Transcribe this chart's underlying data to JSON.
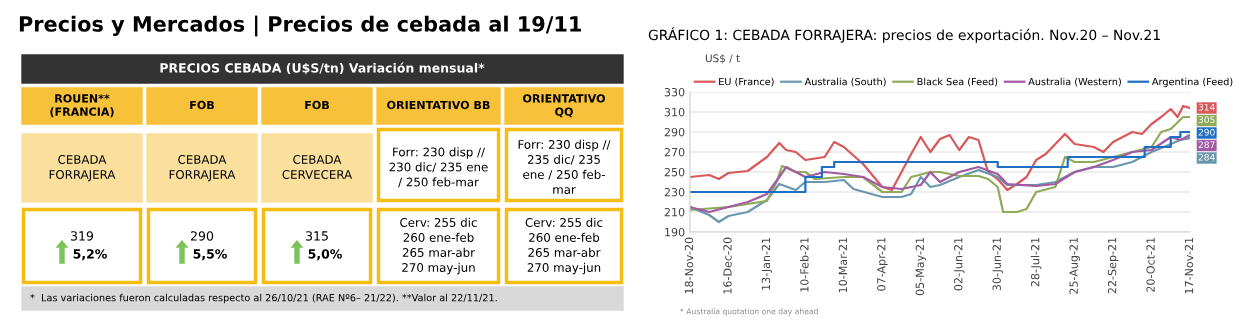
{
  "chart_data": [
    {
      "type": "other",
      "title": "Precios y Mercados | Precios de cebada al 19/11",
      "subtitle": "PRECIOS CEBADA (U$S/tn) Variación mensual*",
      "categories": [
        "ROUEN**\n(FRANCIA)",
        "FOB",
        "FOB",
        "ORIENTATIVO BB",
        "ORIENTATIVO\nQQ"
      ],
      "cell_labels": [
        [
          "CEBADA\nFORRAJERA",
          "CEBADA\nFORRAJERA",
          "CEBADA\nCERVECERA",
          "Forr: 230 disp //\n230 dic/ 235 ene\n/ 250 feb-mar",
          "Forr: 230 disp //\n235 dic/ 235\nene / 250 feb-\nmar"
        ],
        [
          "319\n5,2%",
          "290\n5,5%",
          "315\n5,0%",
          "Cerv: 255 dic\n260 ene-feb\n265 mar-abr\n270 may-jun",
          "Cerv: 255 dic\n260 ene-feb\n265 mar-abr\n270 may-jun"
        ]
      ],
      "annotations": [
        "*  Las variaciones fueron calculadas respecto al 26/10/21 (RAE Nº6– 21/22). **Valor al 22/11/21."
      ]
    },
    {
      "type": "line",
      "title": "GRÁFICO 1: CEBADA FORRAJERA: precios de exportación. Nov.20 – Nov.21",
      "ylabel": "US$ / t",
      "xlim": [
        "2020-11-18",
        "2021-11-17"
      ],
      "xticks": [
        {
          "value": "2020-11-18",
          "label": "18-Nov-20"
        },
        {
          "value": "2020-12-16",
          "label": "16-Dec-20"
        },
        {
          "value": "2021-01-13",
          "label": "13-Jan-21"
        },
        {
          "value": "2021-02-10",
          "label": "10-Feb-21"
        },
        {
          "value": "2021-03-10",
          "label": "10-Mar-21"
        },
        {
          "value": "2021-04-07",
          "label": "07-Apr-21"
        },
        {
          "value": "2021-05-05",
          "label": "05-May-21"
        },
        {
          "value": "2021-06-02",
          "label": "02-Jun-21"
        },
        {
          "value": "2021-06-30",
          "label": "30-Jun-21"
        },
        {
          "value": "2021-07-28",
          "label": "28-Jul-21"
        },
        {
          "value": "2021-08-25",
          "label": "25-Aug-21"
        },
        {
          "value": "2021-09-22",
          "label": "22-Sep-21"
        },
        {
          "value": "2021-10-20",
          "label": "20-Oct-21"
        },
        {
          "value": "2021-11-17",
          "label": "17-Nov-21"
        }
      ],
      "ylim": [
        190,
        330
      ],
      "yticks": [
        190,
        210,
        230,
        250,
        270,
        290,
        310,
        330
      ],
      "grid": "y",
      "legend": "top",
      "line_style": "solid",
      "marker": "none",
      "annotations": [
        "* Australia quotation one day ahead"
      ],
      "series": [
        {
          "name": "EU (France)",
          "color": "#d9585a",
          "x": [
            "2020-11-18",
            "2020-12-02",
            "2020-12-09",
            "2020-12-16",
            "2020-12-30",
            "2021-01-06",
            "2021-01-13",
            "2021-01-22",
            "2021-01-27",
            "2021-02-03",
            "2021-02-10",
            "2021-02-24",
            "2021-03-03",
            "2021-03-10",
            "2021-03-24",
            "2021-04-07",
            "2021-04-14",
            "2021-04-21",
            "2021-04-28",
            "2021-05-05",
            "2021-05-12",
            "2021-05-19",
            "2021-05-26",
            "2021-06-02",
            "2021-06-09",
            "2021-06-16",
            "2021-06-23",
            "2021-06-30",
            "2021-07-07",
            "2021-07-14",
            "2021-07-21",
            "2021-07-28",
            "2021-08-04",
            "2021-08-18",
            "2021-08-25",
            "2021-09-08",
            "2021-09-15",
            "2021-09-22",
            "2021-10-06",
            "2021-10-13",
            "2021-10-20",
            "2021-10-27",
            "2021-11-03",
            "2021-11-08",
            "2021-11-12",
            "2021-11-17"
          ],
          "values": [
            245,
            247,
            243,
            249,
            251,
            258,
            265,
            279,
            272,
            270,
            262,
            265,
            280,
            275,
            258,
            235,
            232,
            250,
            268,
            285,
            270,
            283,
            287,
            272,
            285,
            282,
            250,
            243,
            232,
            238,
            245,
            262,
            268,
            288,
            278,
            275,
            270,
            280,
            290,
            288,
            298,
            305,
            313,
            305,
            316,
            314
          ],
          "value_labels": [
            null,
            null,
            null,
            null,
            null,
            null,
            null,
            null,
            null,
            null,
            null,
            null,
            null,
            null,
            null,
            null,
            null,
            null,
            null,
            null,
            null,
            null,
            null,
            null,
            null,
            null,
            null,
            null,
            null,
            null,
            null,
            null,
            null,
            null,
            null,
            null,
            null,
            null,
            null,
            null,
            null,
            null,
            null,
            null,
            null,
            "314"
          ]
        },
        {
          "name": "Australia (South)",
          "color": "#6a97ad",
          "x": [
            "2020-11-18",
            "2020-12-02",
            "2020-12-09",
            "2020-12-16",
            "2020-12-30",
            "2021-01-13",
            "2021-01-22",
            "2021-02-03",
            "2021-02-10",
            "2021-02-24",
            "2021-03-10",
            "2021-03-17",
            "2021-04-07",
            "2021-04-21",
            "2021-04-28",
            "2021-05-05",
            "2021-05-12",
            "2021-05-19",
            "2021-06-02",
            "2021-06-16",
            "2021-06-30",
            "2021-07-07",
            "2021-07-28",
            "2021-08-11",
            "2021-08-25",
            "2021-09-08",
            "2021-09-22",
            "2021-10-06",
            "2021-10-20",
            "2021-11-03",
            "2021-11-10",
            "2021-11-17"
          ],
          "values": [
            215,
            207,
            200,
            206,
            210,
            222,
            238,
            232,
            240,
            240,
            242,
            233,
            225,
            225,
            228,
            245,
            235,
            237,
            245,
            252,
            245,
            237,
            237,
            240,
            250,
            255,
            255,
            260,
            270,
            278,
            282,
            284
          ],
          "value_labels": [
            null,
            null,
            null,
            null,
            null,
            null,
            null,
            null,
            null,
            null,
            null,
            null,
            null,
            null,
            null,
            null,
            null,
            null,
            null,
            null,
            null,
            null,
            null,
            null,
            null,
            null,
            null,
            null,
            null,
            null,
            null,
            "284"
          ]
        },
        {
          "name": "Black Sea (Feed)",
          "color": "#8fab5a",
          "x": [
            "2020-11-18",
            "2020-12-16",
            "2021-01-13",
            "2021-01-20",
            "2021-01-24",
            "2021-02-03",
            "2021-02-10",
            "2021-02-17",
            "2021-03-10",
            "2021-03-24",
            "2021-04-07",
            "2021-04-21",
            "2021-04-28",
            "2021-05-12",
            "2021-05-19",
            "2021-06-02",
            "2021-06-16",
            "2021-06-23",
            "2021-06-30",
            "2021-07-04",
            "2021-07-14",
            "2021-07-21",
            "2021-07-28",
            "2021-08-11",
            "2021-08-18",
            "2021-08-25",
            "2021-09-08",
            "2021-09-22",
            "2021-10-06",
            "2021-10-20",
            "2021-10-27",
            "2021-11-03",
            "2021-11-12",
            "2021-11-17"
          ],
          "values": [
            212,
            215,
            221,
            240,
            256,
            250,
            250,
            243,
            245,
            245,
            230,
            230,
            245,
            250,
            250,
            246,
            246,
            243,
            235,
            210,
            210,
            213,
            230,
            235,
            265,
            260,
            260,
            265,
            270,
            275,
            290,
            293,
            305,
            305
          ],
          "value_labels": [
            null,
            null,
            null,
            null,
            null,
            null,
            null,
            null,
            null,
            null,
            null,
            null,
            null,
            null,
            null,
            null,
            null,
            null,
            null,
            null,
            null,
            null,
            null,
            null,
            null,
            null,
            null,
            null,
            null,
            null,
            null,
            null,
            null,
            "305"
          ]
        },
        {
          "name": "Australia (Western)",
          "color": "#a25aa3",
          "x": [
            "2020-11-18",
            "2020-12-02",
            "2020-12-16",
            "2020-12-30",
            "2021-01-13",
            "2021-01-22",
            "2021-01-27",
            "2021-02-10",
            "2021-02-24",
            "2021-03-10",
            "2021-03-24",
            "2021-04-07",
            "2021-04-21",
            "2021-05-05",
            "2021-05-12",
            "2021-05-19",
            "2021-06-02",
            "2021-06-16",
            "2021-06-30",
            "2021-07-07",
            "2021-07-28",
            "2021-08-11",
            "2021-08-25",
            "2021-09-08",
            "2021-09-22",
            "2021-10-06",
            "2021-10-20",
            "2021-11-03",
            "2021-11-10",
            "2021-11-17"
          ],
          "values": [
            215,
            210,
            215,
            220,
            228,
            245,
            255,
            245,
            250,
            248,
            245,
            235,
            233,
            237,
            250,
            240,
            250,
            255,
            248,
            238,
            236,
            238,
            250,
            255,
            262,
            270,
            272,
            285,
            282,
            287
          ],
          "value_labels": [
            null,
            null,
            null,
            null,
            null,
            null,
            null,
            null,
            null,
            null,
            null,
            null,
            null,
            null,
            null,
            null,
            null,
            null,
            null,
            null,
            null,
            null,
            null,
            null,
            null,
            null,
            null,
            null,
            null,
            "287"
          ]
        },
        {
          "name": "Argentina (Feed)",
          "color": "#1f6fc5",
          "type": "step",
          "x": [
            "2020-11-18",
            "2021-02-10",
            "2021-02-22",
            "2021-03-03",
            "2021-06-30",
            "2021-08-20",
            "2021-10-15",
            "2021-11-03",
            "2021-11-10",
            "2021-11-17"
          ],
          "values": [
            230,
            245,
            255,
            260,
            255,
            265,
            275,
            285,
            290,
            290
          ],
          "value_labels": [
            null,
            null,
            null,
            null,
            null,
            null,
            null,
            null,
            null,
            "290"
          ]
        }
      ]
    }
  ]
}
